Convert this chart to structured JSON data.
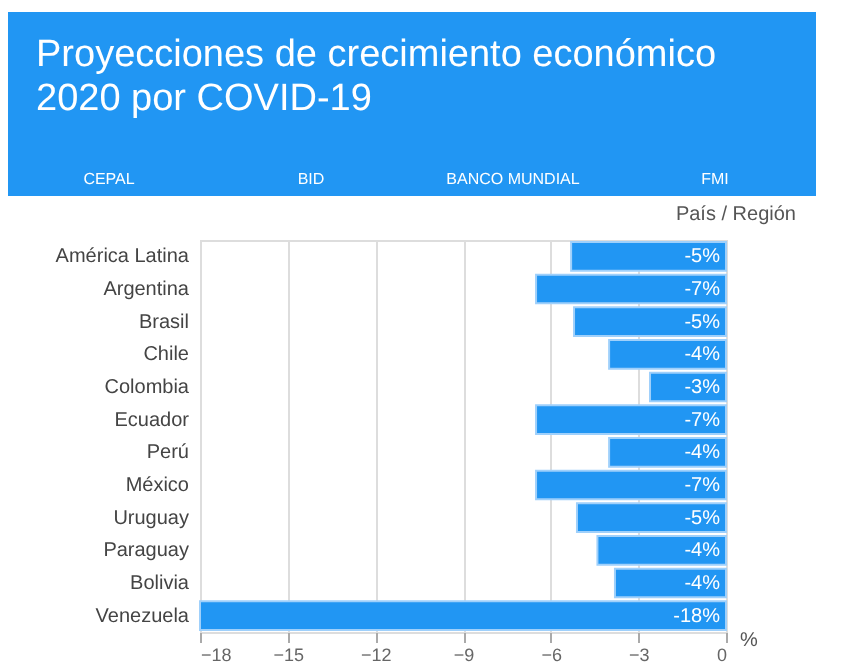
{
  "chart_data": {
    "type": "bar",
    "orientation": "horizontal",
    "title": "Proyecciones de crecimiento económico 2020 por COVID-19",
    "annotations": [
      "CEPAL",
      "BID",
      "BANCO MUNDIAL",
      "FMI"
    ],
    "ylabel": "País / Región",
    "xlabel": "%",
    "categories": [
      "América Latina",
      "Argentina",
      "Brasil",
      "Chile",
      "Colombia",
      "Ecuador",
      "Perú",
      "México",
      "Uruguay",
      "Paraguay",
      "Bolivia",
      "Venezuela"
    ],
    "values": [
      -5.3,
      -6.5,
      -5.2,
      -4.0,
      -2.6,
      -6.5,
      -4.0,
      -6.5,
      -5.1,
      -4.4,
      -3.8,
      -18
    ],
    "value_labels": [
      "-5%",
      "-7%",
      "-5%",
      "-4%",
      "-3%",
      "-7%",
      "-4%",
      "-7%",
      "-5%",
      "-4%",
      "-4%",
      "-18%"
    ],
    "color": "#2196f3",
    "xlim": [
      -18,
      0
    ],
    "xticks": [
      -18,
      -15,
      -12,
      -9,
      -6,
      -3,
      0
    ],
    "grid": "x"
  }
}
